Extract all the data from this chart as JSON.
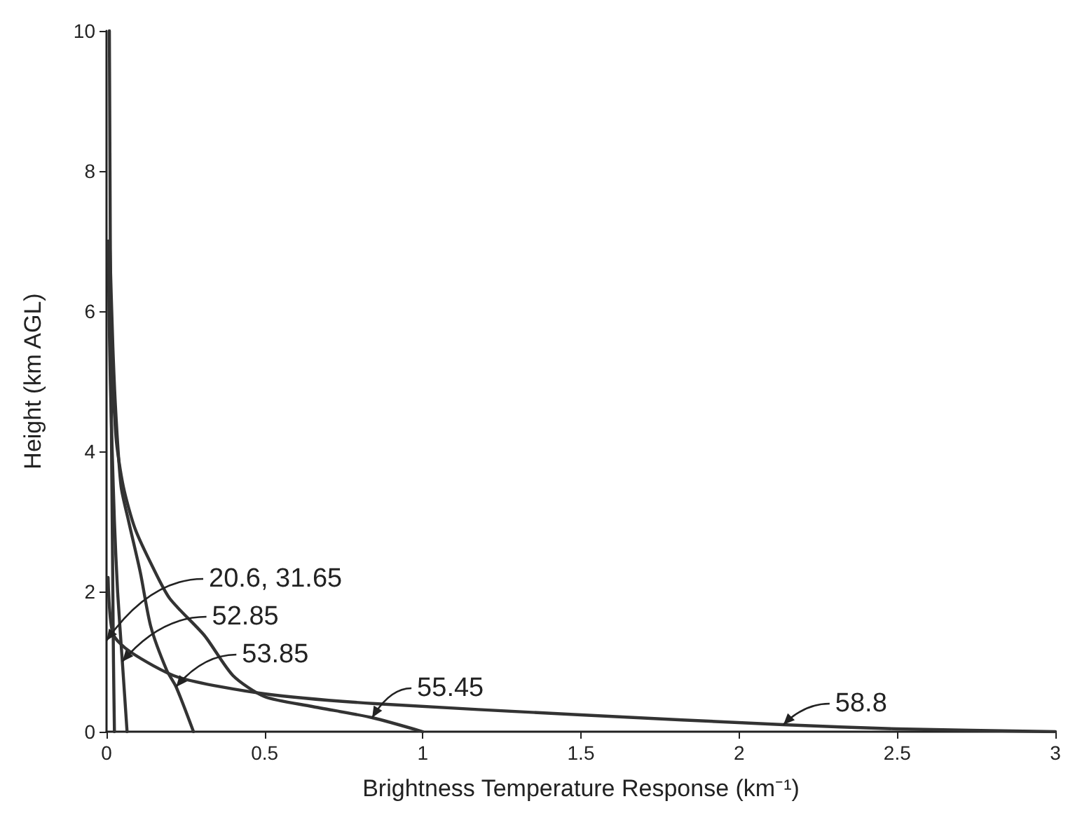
{
  "chart_data": {
    "type": "line",
    "xlabel": "Brightness Temperature Response (km⁻¹)",
    "ylabel": "Height (km AGL)",
    "xlim": [
      0,
      3
    ],
    "xticks": [
      0,
      0.5,
      1,
      1.5,
      2,
      2.5,
      3
    ],
    "ylim": [
      0,
      10
    ],
    "yticks": [
      0,
      2,
      4,
      6,
      8,
      10
    ],
    "grid": false,
    "marker": "none",
    "line_style": "solid",
    "series": [
      {
        "color": "#333333",
        "x": [
          0.025,
          0.022,
          0.02,
          0.018,
          0.016,
          0.013,
          0.011,
          0.009
        ],
        "values": [
          0,
          1,
          2,
          3,
          4,
          6,
          8,
          10
        ]
      },
      {
        "color": "#333333",
        "x": [
          0.065,
          0.05,
          0.035,
          0.025,
          0.018,
          0.012,
          0.008,
          0.005
        ],
        "values": [
          0,
          1,
          2,
          3,
          4,
          5,
          6,
          7
        ]
      },
      {
        "color": "#333333",
        "x": [
          0.275,
          0.22,
          0.19,
          0.14,
          0.107,
          0.07,
          0.046,
          0.03,
          0.02,
          0.01
        ],
        "values": [
          0,
          0.64,
          0.88,
          1.5,
          2.27,
          3,
          3.5,
          4.5,
          5.5,
          7
        ]
      },
      {
        "color": "#333333",
        "x": [
          1.0,
          0.84,
          0.65,
          0.5,
          0.4,
          0.31,
          0.2,
          0.146,
          0.09,
          0.053,
          0.03,
          0.01
        ],
        "values": [
          0,
          0.2,
          0.36,
          0.5,
          0.8,
          1.37,
          1.9,
          2.35,
          2.9,
          3.5,
          4.2,
          6
        ]
      },
      {
        "color": "#333333",
        "x": [
          3.0,
          2.5,
          2.14,
          1.5,
          0.85,
          0.5,
          0.225,
          0.075,
          0.02,
          0.005
        ],
        "values": [
          0,
          0.04,
          0.1,
          0.24,
          0.4,
          0.54,
          0.78,
          1.14,
          1.4,
          2.2
        ]
      }
    ],
    "annotations": [
      {
        "text": "20.6, 31.65",
        "x": 0,
        "y": 1.3
      },
      {
        "text": "52.85",
        "x": 0.05,
        "y": 1.0
      },
      {
        "text": "53.85",
        "x": 0.22,
        "y": 0.64
      },
      {
        "text": "55.45",
        "x": 0.84,
        "y": 0.2
      },
      {
        "text": "58.8",
        "x": 2.14,
        "y": 0.1
      }
    ]
  }
}
